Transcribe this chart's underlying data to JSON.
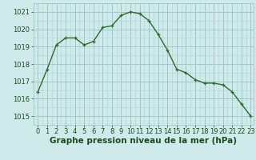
{
  "x": [
    0,
    1,
    2,
    3,
    4,
    5,
    6,
    7,
    8,
    9,
    10,
    11,
    12,
    13,
    14,
    15,
    16,
    17,
    18,
    19,
    20,
    21,
    22,
    23
  ],
  "y": [
    1016.4,
    1017.7,
    1019.1,
    1019.5,
    1019.5,
    1019.1,
    1019.3,
    1020.1,
    1020.2,
    1020.8,
    1021.0,
    1020.9,
    1020.5,
    1019.7,
    1018.8,
    1017.7,
    1017.5,
    1017.1,
    1016.9,
    1016.9,
    1016.8,
    1016.4,
    1015.7,
    1015.0
  ],
  "line_color": "#2d6b2d",
  "marker": "+",
  "marker_size": 3.5,
  "line_width": 1.0,
  "bg_color": "#ceeaea",
  "grid_minor_color": "#b5d8d8",
  "grid_major_color": "#9ec8c8",
  "xlabel": "Graphe pression niveau de la mer (hPa)",
  "xlabel_fontsize": 7.5,
  "xlabel_color": "#1a4d1a",
  "yticks": [
    1015,
    1016,
    1017,
    1018,
    1019,
    1020,
    1021
  ],
  "xticks": [
    0,
    1,
    2,
    3,
    4,
    5,
    6,
    7,
    8,
    9,
    10,
    11,
    12,
    13,
    14,
    15,
    16,
    17,
    18,
    19,
    20,
    21,
    22,
    23
  ],
  "ylim": [
    1014.6,
    1021.4
  ],
  "xlim": [
    -0.3,
    23.3
  ],
  "tick_fontsize": 6.0,
  "tick_color": "#1a4d1a"
}
